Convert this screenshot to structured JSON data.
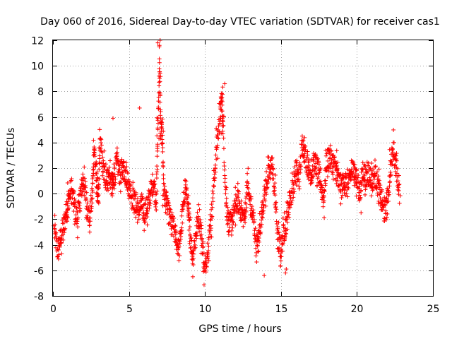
{
  "chart_data": {
    "type": "scatter",
    "title": "Day 060 of 2016, Sidereal Day-to-day VTEC variation (SDTVAR) for receiver cas1",
    "xlabel": "GPS time / hours",
    "ylabel": "SDTVAR / TECUs",
    "xlim": [
      0,
      25
    ],
    "ylim": [
      -8,
      12
    ],
    "x_ticks": [
      0,
      5,
      10,
      15,
      20,
      25
    ],
    "y_ticks": [
      -8,
      -6,
      -4,
      -2,
      0,
      2,
      4,
      6,
      8,
      10,
      12
    ],
    "grid": true,
    "marker": "+",
    "series_color": "#ff0000",
    "anchors": [
      [
        0.1,
        -3.0
      ],
      [
        0.3,
        -4.5
      ],
      [
        0.5,
        -3.5
      ],
      [
        0.7,
        -2.5
      ],
      [
        0.9,
        -1.5
      ],
      [
        1.0,
        -0.5
      ],
      [
        1.2,
        0.3
      ],
      [
        1.4,
        -1.0
      ],
      [
        1.6,
        -2.0
      ],
      [
        1.8,
        0.0
      ],
      [
        2.0,
        1.0
      ],
      [
        2.2,
        -0.5
      ],
      [
        2.4,
        -2.0
      ],
      [
        2.6,
        0.0
      ],
      [
        2.7,
        3.5
      ],
      [
        2.9,
        1.0
      ],
      [
        3.0,
        -0.5
      ],
      [
        3.1,
        4.2
      ],
      [
        3.3,
        2.0
      ],
      [
        3.5,
        1.0
      ],
      [
        3.7,
        1.5
      ],
      [
        3.9,
        0.5
      ],
      [
        4.0,
        1.0
      ],
      [
        4.2,
        2.5
      ],
      [
        4.4,
        1.5
      ],
      [
        4.6,
        2.0
      ],
      [
        4.8,
        1.5
      ],
      [
        5.0,
        0.5
      ],
      [
        5.2,
        0.0
      ],
      [
        5.4,
        -1.0
      ],
      [
        5.6,
        -1.5
      ],
      [
        5.8,
        -1.0
      ],
      [
        6.0,
        -1.5
      ],
      [
        6.2,
        -1.0
      ],
      [
        6.4,
        0.0
      ],
      [
        6.6,
        1.0
      ],
      [
        6.8,
        -0.5
      ],
      [
        6.9,
        5.0
      ],
      [
        7.0,
        10.0
      ],
      [
        7.1,
        5.0
      ],
      [
        7.2,
        4.5
      ],
      [
        7.3,
        0.0
      ],
      [
        7.5,
        -1.0
      ],
      [
        7.7,
        -2.0
      ],
      [
        7.9,
        -2.5
      ],
      [
        8.1,
        -3.5
      ],
      [
        8.3,
        -4.5
      ],
      [
        8.5,
        -2.0
      ],
      [
        8.7,
        0.5
      ],
      [
        8.9,
        -1.0
      ],
      [
        9.0,
        -3.0
      ],
      [
        9.2,
        -5.0
      ],
      [
        9.4,
        -3.0
      ],
      [
        9.6,
        -1.5
      ],
      [
        9.8,
        -3.5
      ],
      [
        10.0,
        -6.0
      ],
      [
        10.2,
        -4.0
      ],
      [
        10.4,
        -2.0
      ],
      [
        10.6,
        1.0
      ],
      [
        10.8,
        4.0
      ],
      [
        11.0,
        6.0
      ],
      [
        11.1,
        7.5
      ],
      [
        11.2,
        5.0
      ],
      [
        11.4,
        -1.0
      ],
      [
        11.6,
        -2.5
      ],
      [
        11.8,
        -2.0
      ],
      [
        12.0,
        -1.0
      ],
      [
        12.2,
        -0.5
      ],
      [
        12.4,
        -1.5
      ],
      [
        12.6,
        -2.0
      ],
      [
        12.8,
        0.5
      ],
      [
        13.0,
        -1.0
      ],
      [
        13.2,
        -2.0
      ],
      [
        13.4,
        -4.5
      ],
      [
        13.6,
        -3.0
      ],
      [
        13.8,
        -1.0
      ],
      [
        14.0,
        0.5
      ],
      [
        14.2,
        1.5
      ],
      [
        14.4,
        2.5
      ],
      [
        14.6,
        0.0
      ],
      [
        14.8,
        -3.5
      ],
      [
        15.0,
        -4.5
      ],
      [
        15.2,
        -3.0
      ],
      [
        15.4,
        -2.0
      ],
      [
        15.6,
        -0.5
      ],
      [
        15.8,
        0.5
      ],
      [
        16.0,
        2.0
      ],
      [
        16.2,
        1.0
      ],
      [
        16.4,
        4.0
      ],
      [
        16.6,
        3.0
      ],
      [
        16.8,
        2.0
      ],
      [
        17.0,
        1.5
      ],
      [
        17.2,
        2.5
      ],
      [
        17.4,
        2.0
      ],
      [
        17.6,
        1.0
      ],
      [
        17.8,
        -0.5
      ],
      [
        18.0,
        2.5
      ],
      [
        18.2,
        3.0
      ],
      [
        18.4,
        2.5
      ],
      [
        18.6,
        2.0
      ],
      [
        18.8,
        1.0
      ],
      [
        19.0,
        0.5
      ],
      [
        19.2,
        1.0
      ],
      [
        19.4,
        0.5
      ],
      [
        19.6,
        1.5
      ],
      [
        19.8,
        2.0
      ],
      [
        20.0,
        1.0
      ],
      [
        20.2,
        0.0
      ],
      [
        20.4,
        2.0
      ],
      [
        20.6,
        1.0
      ],
      [
        20.8,
        1.5
      ],
      [
        21.0,
        1.0
      ],
      [
        21.2,
        1.5
      ],
      [
        21.4,
        0.5
      ],
      [
        21.6,
        -0.5
      ],
      [
        21.8,
        -1.5
      ],
      [
        22.0,
        -1.0
      ],
      [
        22.2,
        2.0
      ],
      [
        22.4,
        3.5
      ],
      [
        22.6,
        2.0
      ],
      [
        22.8,
        0.0
      ]
    ],
    "outliers": [
      [
        3.95,
        5.9
      ],
      [
        5.7,
        6.7
      ],
      [
        6.9,
        11.8
      ],
      [
        7.0,
        11.6
      ],
      [
        7.05,
        9.4
      ],
      [
        11.3,
        8.6
      ],
      [
        15.3,
        -6.2
      ],
      [
        15.35,
        -5.9
      ],
      [
        9.2,
        -6.5
      ],
      [
        9.9,
        -6.1
      ],
      [
        13.9,
        -6.4
      ],
      [
        7.05,
        12.0
      ]
    ]
  }
}
